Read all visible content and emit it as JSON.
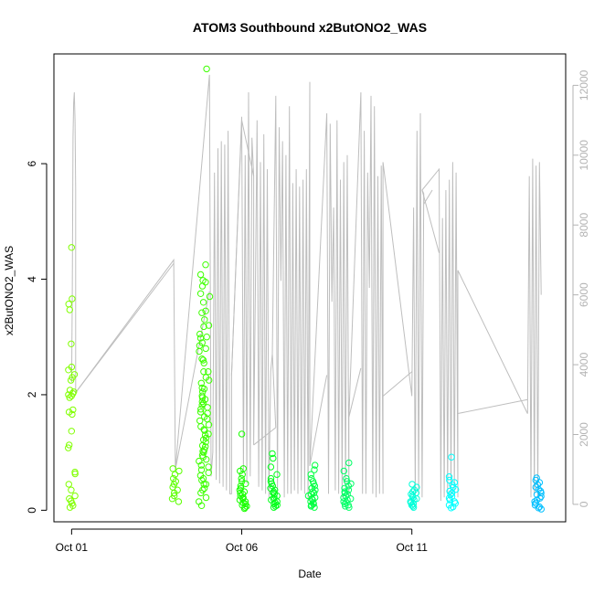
{
  "chart_data": {
    "type": "scatter",
    "title": "ATOM3 Southbound x2ButONO2_WAS",
    "xlabel": "Date",
    "ylabel": "x2ButONO2_WAS",
    "x_ticks": [
      "Oct 01",
      "Oct 06",
      "Oct 11"
    ],
    "x_tick_values": [
      0,
      5,
      10
    ],
    "xlim": [
      -0.52,
      14.52
    ],
    "ylim": [
      -0.2,
      7.9
    ],
    "y_ticks": [
      0,
      2,
      4,
      6
    ],
    "y2lim": [
      -500,
      12900
    ],
    "y2_ticks": [
      0,
      2000,
      4000,
      6000,
      8000,
      10000,
      12000
    ],
    "grid": false,
    "legend": "none",
    "colors": {
      "line": "#bebebe",
      "axis": "#000000",
      "axis2": "#b3b3b3"
    },
    "altitude_series": {
      "name": "",
      "color": "#bebebe",
      "x": [
        0,
        0.02,
        0.04,
        0.06,
        0.08,
        0.1,
        0.12,
        0.12,
        3.0,
        3.05,
        4.05,
        4.1,
        4.15,
        4.2,
        4.25,
        4.3,
        4.35,
        4.4,
        4.45,
        4.5,
        4.55,
        4.6,
        4.65,
        4.7,
        4.7,
        5.0,
        5.05,
        5.1,
        5.15,
        5.2,
        5.25,
        5.3,
        5.35,
        5.35,
        5.4,
        5.45,
        5.5,
        5.55,
        5.6,
        5.65,
        5.7,
        5.75,
        5.8,
        5.85,
        5.9,
        6.0,
        6.05,
        6.1,
        6.15,
        6.2,
        6.25,
        6.3,
        6.35,
        6.4,
        6.45,
        6.5,
        6.55,
        6.6,
        6.65,
        6.7,
        6.75,
        6.8,
        6.85,
        6.9,
        6.95,
        7.0,
        7.0,
        7.5,
        7.55,
        7.6,
        7.65,
        7.7,
        7.75,
        7.8,
        7.85,
        7.9,
        7.95,
        8.0,
        8.05,
        8.1,
        8.15,
        8.15,
        8.5,
        8.55,
        8.6,
        8.65,
        8.7,
        8.75,
        8.8,
        8.85,
        8.9,
        8.95,
        9.0,
        9.05,
        9.1,
        9.15,
        9.15,
        10.0,
        10.05,
        10.1,
        10.15,
        10.2,
        10.25,
        10.3,
        10.35,
        10.3,
        10.8,
        10.85,
        10.9,
        10.95,
        11.0,
        11.05,
        11.1,
        11.15,
        11.2,
        11.25,
        11.3,
        11.35,
        11.35,
        13.4,
        13.45,
        13.5,
        13.55,
        13.6,
        13.65,
        13.7,
        13.75,
        13.8
      ],
      "y": [
        3500,
        6000,
        10500,
        11500,
        11800,
        11000,
        9000,
        3200,
        7000,
        1000,
        12300,
        800,
        1500,
        9500,
        700,
        10200,
        600,
        10400,
        500,
        10300,
        400,
        10700,
        300,
        300,
        3700,
        11100,
        900,
        10000,
        600,
        11800,
        800,
        10500,
        9400,
        1700,
        6000,
        11000,
        500,
        9800,
        400,
        10600,
        300,
        9600,
        200,
        3800,
        4300,
        11700,
        300,
        10800,
        6400,
        10400,
        200,
        10000,
        300,
        11400,
        300,
        9200,
        400,
        9600,
        300,
        9100,
        400,
        9300,
        300,
        9600,
        100,
        12100,
        1100,
        11200,
        300,
        10900,
        5800,
        8500,
        400,
        11000,
        300,
        9300,
        200,
        9800,
        500,
        10000,
        200,
        2500,
        11800,
        300,
        10700,
        300,
        9500,
        6200,
        11700,
        300,
        11400,
        200,
        9400,
        300,
        9700,
        300,
        9800,
        3100,
        8500,
        200,
        10700,
        300,
        11200,
        200,
        8900,
        9000,
        9600,
        100,
        8200,
        200,
        9000,
        300,
        9300,
        200,
        9800,
        300,
        9500,
        200,
        6700,
        2600,
        9400,
        200,
        9900,
        300,
        9700,
        200,
        9800,
        6000
      ],
      "segments": [
        {
          "x": [
            0.12,
            3.0
          ],
          "y": [
            3200,
            6900
          ]
        },
        {
          "x": [
            3.05,
            4.05
          ],
          "y": [
            1000,
            6100
          ]
        },
        {
          "x": [
            4.7,
            5.0
          ],
          "y": [
            3700,
            11000
          ]
        },
        {
          "x": [
            5.35,
            5.0
          ],
          "y": [
            9400,
            11000
          ]
        },
        {
          "x": [
            5.35,
            6.0
          ],
          "y": [
            1700,
            2200
          ]
        },
        {
          "x": [
            5.9,
            6.0
          ],
          "y": [
            4300,
            2200
          ]
        },
        {
          "x": [
            7.0,
            7.5
          ],
          "y": [
            1100,
            3700
          ]
        },
        {
          "x": [
            8.15,
            8.5
          ],
          "y": [
            2500,
            3900
          ]
        },
        {
          "x": [
            9.15,
            10.0
          ],
          "y": [
            3100,
            3800
          ]
        },
        {
          "x": [
            10.3,
            10.8
          ],
          "y": [
            9000,
            7200
          ]
        },
        {
          "x": [
            11.35,
            13.4
          ],
          "y": [
            2600,
            3000
          ]
        },
        {
          "x": [
            10.35,
            10.6
          ],
          "y": [
            8600,
            9000
          ]
        }
      ]
    },
    "clusters": [
      {
        "x": 0.0,
        "color": "#80ff00",
        "values": [
          4.55,
          3.66,
          3.57,
          3.47,
          2.88,
          2.48,
          2.43,
          2.35,
          2.3,
          2.25,
          2.08,
          2.05,
          2.02,
          2.0,
          1.98,
          1.95,
          1.74,
          1.7,
          1.66,
          1.37,
          1.13,
          1.08,
          0.66,
          0.63,
          0.45,
          0.35,
          0.25,
          0.2,
          0.16,
          0.12,
          0.08,
          0.05
        ]
      },
      {
        "x": 3.05,
        "color": "#5cff00",
        "values": [
          0.72,
          0.68,
          0.62,
          0.55,
          0.5,
          0.45,
          0.4,
          0.35,
          0.3,
          0.25,
          0.2,
          0.15
        ]
      },
      {
        "x": 3.85,
        "color": "#3dff00",
        "values": [
          4.08,
          3.95,
          3.88,
          3.75,
          3.6,
          3.42,
          3.3,
          3.18,
          3.05,
          2.98,
          2.9,
          2.85,
          2.75,
          2.62,
          2.55,
          2.4,
          2.3,
          2.2,
          2.12,
          2.05,
          1.98,
          1.92,
          1.88,
          1.82,
          1.75,
          1.7,
          1.62,
          1.55,
          1.45,
          1.38,
          1.3,
          1.25,
          1.18,
          1.1,
          1.05,
          1.0,
          0.92,
          0.85,
          0.78,
          0.7,
          0.6,
          0.52,
          0.45,
          0.38,
          0.3,
          0.22,
          0.15,
          0.08
        ]
      },
      {
        "x": 3.95,
        "color": "#3dff00",
        "values": [
          7.64,
          4.25,
          3.98,
          3.7,
          3.45,
          3.2,
          3.0,
          2.8,
          2.6,
          2.4,
          2.25,
          2.1,
          1.95,
          1.85,
          1.78,
          1.68,
          1.58,
          1.48,
          1.4,
          1.32,
          1.22,
          1.12,
          1.02,
          0.95,
          0.88,
          0.75,
          0.65,
          0.55,
          0.45,
          0.35
        ]
      },
      {
        "x": 5.05,
        "color": "#19ff00",
        "values": [
          1.32,
          0.72,
          0.68,
          0.62,
          0.55,
          0.5,
          0.46,
          0.42,
          0.38,
          0.35,
          0.32,
          0.3,
          0.28,
          0.25,
          0.22,
          0.2,
          0.18,
          0.15,
          0.13,
          0.11,
          0.09,
          0.07,
          0.05,
          0.03
        ]
      },
      {
        "x": 5.95,
        "color": "#00ff1a",
        "values": [
          0.98,
          0.9,
          0.75,
          0.62,
          0.55,
          0.5,
          0.46,
          0.42,
          0.38,
          0.35,
          0.32,
          0.3,
          0.28,
          0.25,
          0.22,
          0.2,
          0.18,
          0.15,
          0.13,
          0.11,
          0.09,
          0.07,
          0.05
        ]
      },
      {
        "x": 7.05,
        "color": "#00ff40",
        "values": [
          0.78,
          0.7,
          0.62,
          0.55,
          0.5,
          0.46,
          0.42,
          0.38,
          0.35,
          0.32,
          0.3,
          0.28,
          0.25,
          0.22,
          0.2,
          0.18,
          0.15,
          0.13,
          0.11,
          0.09,
          0.07,
          0.05
        ]
      },
      {
        "x": 8.1,
        "color": "#00ff66",
        "values": [
          0.82,
          0.68,
          0.55,
          0.5,
          0.46,
          0.42,
          0.38,
          0.35,
          0.32,
          0.3,
          0.28,
          0.25,
          0.22,
          0.2,
          0.18,
          0.15,
          0.13,
          0.11,
          0.09,
          0.07,
          0.05
        ]
      },
      {
        "x": 10.05,
        "color": "#00ffd9",
        "values": [
          0.45,
          0.4,
          0.35,
          0.32,
          0.3,
          0.28,
          0.25,
          0.22,
          0.2,
          0.18,
          0.15,
          0.13,
          0.11,
          0.09,
          0.07,
          0.05
        ]
      },
      {
        "x": 11.2,
        "color": "#00ffff",
        "values": [
          0.92,
          0.58,
          0.52,
          0.48,
          0.44,
          0.4,
          0.36,
          0.33,
          0.3,
          0.27,
          0.24,
          0.21,
          0.18,
          0.15,
          0.12,
          0.09,
          0.06,
          0.04
        ]
      },
      {
        "x": 13.7,
        "color": "#00bfff",
        "values": [
          0.56,
          0.52,
          0.48,
          0.44,
          0.4,
          0.36,
          0.33,
          0.3,
          0.27,
          0.24,
          0.21,
          0.18,
          0.15,
          0.12,
          0.09,
          0.06,
          0.04,
          0.02
        ]
      }
    ]
  }
}
